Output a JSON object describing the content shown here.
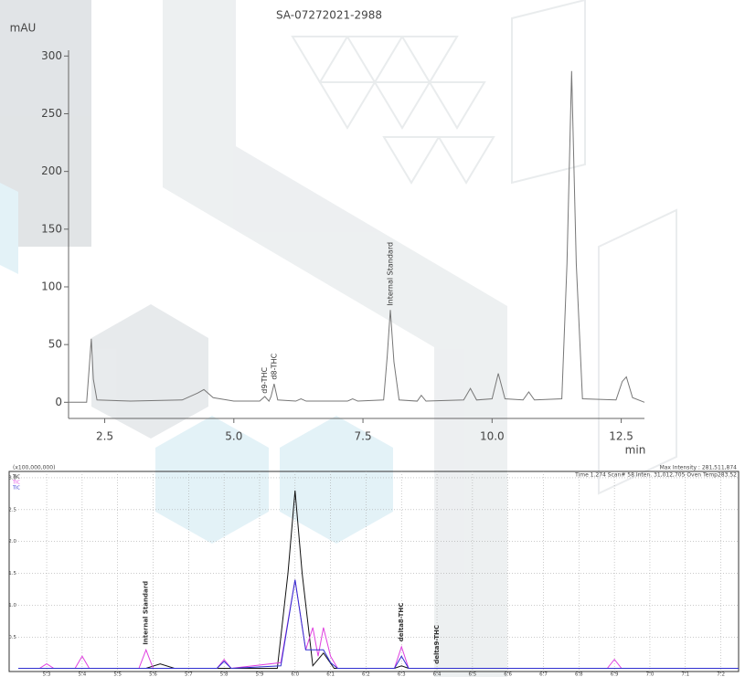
{
  "chart_data": [
    {
      "type": "line",
      "title": "SA-07272021-2988",
      "y_unit": "mAU",
      "x_unit": "min",
      "xlim": [
        1.8,
        12.95
      ],
      "ylim": [
        -14,
        305
      ],
      "xticks": [
        2.5,
        {
          "value": 5,
          "label": "5.0"
        },
        7.5,
        {
          "value": 10,
          "label": "10.0"
        },
        12.5
      ],
      "yticks": [
        0,
        50,
        100,
        150,
        200,
        250,
        300
      ],
      "grid": false,
      "series": [
        {
          "color": "#777777",
          "x": [
            1.8,
            2.15,
            2.2,
            2.24,
            2.28,
            2.35,
            3.0,
            4.0,
            4.3,
            4.42,
            4.6,
            5.0,
            5.5,
            5.6,
            5.68,
            5.72,
            5.78,
            5.85,
            6.2,
            6.3,
            6.4,
            7.2,
            7.3,
            7.4,
            7.9,
            7.97,
            8.03,
            8.1,
            8.2,
            8.55,
            8.63,
            8.72,
            9.45,
            9.58,
            9.7,
            10.0,
            10.12,
            10.25,
            10.6,
            10.71,
            10.82,
            11.35,
            11.45,
            11.54,
            11.63,
            11.75,
            12.4,
            12.52,
            12.6,
            12.72,
            12.95
          ],
          "values": [
            0,
            0,
            30,
            55,
            20,
            2,
            1,
            2,
            8,
            11,
            4,
            1,
            1,
            5,
            1,
            5,
            16,
            2,
            1,
            3,
            1,
            1,
            3,
            1,
            2,
            40,
            80,
            35,
            2,
            1,
            6,
            1,
            2,
            12,
            2,
            3,
            25,
            3,
            2,
            9,
            2,
            3,
            120,
            287,
            120,
            3,
            2,
            18,
            22,
            4,
            0
          ]
        }
      ],
      "annotations": [
        {
          "text": "d9-THC",
          "x": 5.6,
          "y": 6
        },
        {
          "text": "d8-THC",
          "x": 5.78,
          "y": 18
        },
        {
          "text": "Internal Standard",
          "x": 8.03,
          "y": 82
        }
      ]
    },
    {
      "type": "line",
      "scale_label": "(x100,000,000)",
      "max_intensity": "Max Intensity : 281,511,874",
      "status": "Time  1.274   Scan#    58   Inten.   31,012,705   Oven Temp283.52",
      "xlim": [
        5.22,
        7.25
      ],
      "ylim": [
        -0.04,
        3.1
      ],
      "xticks": [
        5.3,
        5.4,
        5.5,
        5.6,
        5.7,
        5.8,
        5.9,
        {
          "value": 6,
          "label": "6.0"
        },
        6.1,
        6.2,
        6.3,
        6.4,
        6.5,
        6.6,
        6.7,
        6.8,
        6.9,
        {
          "value": 7,
          "label": "7.0"
        },
        7.1,
        7.2
      ],
      "yticks": [
        {
          "value": 0.5,
          "label": "0.5"
        },
        {
          "value": 1,
          "label": "1.0"
        },
        {
          "value": 1.5,
          "label": "1.5"
        },
        {
          "value": 2,
          "label": "2.0"
        },
        {
          "value": 2.5,
          "label": "2.5"
        },
        {
          "value": 3,
          "label": "3.0"
        }
      ],
      "grid": true,
      "series": [
        {
          "name": "TIC",
          "color": "#111111",
          "x": [
            5.22,
            5.58,
            5.62,
            5.66,
            5.95,
            5.98,
            6.0,
            6.02,
            6.05,
            6.08,
            6.11,
            6.28,
            6.3,
            6.32,
            7.25
          ],
          "values": [
            0.01,
            0.01,
            0.08,
            0.01,
            0.01,
            1.5,
            2.8,
            1.5,
            0.05,
            0.25,
            0.01,
            0.01,
            0.05,
            0.01,
            0.01
          ]
        },
        {
          "name": "TIC",
          "color": "#e040e0",
          "x": [
            5.22,
            5.28,
            5.3,
            5.32,
            5.38,
            5.4,
            5.42,
            5.56,
            5.58,
            5.6,
            5.78,
            5.8,
            5.82,
            5.96,
            6.0,
            6.03,
            6.05,
            6.065,
            6.08,
            6.1,
            6.12,
            6.28,
            6.3,
            6.32,
            6.88,
            6.9,
            6.92,
            7.25
          ],
          "values": [
            0.01,
            0.01,
            0.08,
            0.01,
            0.01,
            0.2,
            0.01,
            0.01,
            0.3,
            0.01,
            0.01,
            0.15,
            0.01,
            0.1,
            1.4,
            0.3,
            0.65,
            0.2,
            0.65,
            0.2,
            0.01,
            0.01,
            0.35,
            0.01,
            0.01,
            0.15,
            0.01,
            0.01
          ]
        },
        {
          "name": "TIC",
          "color": "#3030d0",
          "x": [
            5.22,
            5.78,
            5.8,
            5.82,
            5.96,
            6.0,
            6.03,
            6.06,
            6.08,
            6.1,
            6.12,
            6.28,
            6.3,
            6.32,
            7.25
          ],
          "values": [
            0.01,
            0.01,
            0.12,
            0.01,
            0.05,
            1.4,
            0.3,
            0.3,
            0.3,
            0.1,
            0.01,
            0.01,
            0.2,
            0.01,
            0.01
          ]
        }
      ],
      "annotations": [
        {
          "text": "Internal Standard",
          "x": 5.58,
          "y": 0.35
        },
        {
          "text": "delta8-THC",
          "x": 6.3,
          "y": 0.4
        },
        {
          "text": "delta9-THC",
          "x": 6.4,
          "y": 0.05
        }
      ]
    }
  ]
}
